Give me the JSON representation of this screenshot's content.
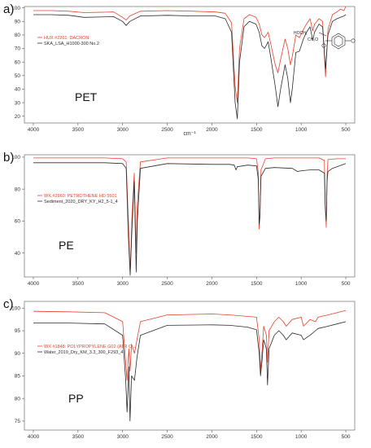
{
  "colors": {
    "reference": "#e8402a",
    "sample": "#2b2b2b",
    "axis": "#555555",
    "struct": "#222222"
  },
  "chart_data": [
    {
      "type": "line",
      "panel_label": "a)",
      "polymer_label": "PET",
      "xlabel": "cm⁻¹",
      "x_reversed": true,
      "xlim": [
        4100,
        400
      ],
      "ylim": [
        15,
        101
      ],
      "x_ticks": [
        4000,
        3500,
        3000,
        2500,
        2000,
        1500,
        1000,
        500
      ],
      "y_ticks": [
        20,
        30,
        40,
        50,
        60,
        70,
        80,
        90,
        100
      ],
      "legend_position": "upper-left",
      "structure_labels": [
        "HOCH₂",
        "CH₂O"
      ],
      "series": [
        {
          "name": "HUX #2261: DACRON",
          "role": "reference",
          "points": [
            [
              4000,
              98
            ],
            [
              3800,
              98
            ],
            [
              3600,
              97.5
            ],
            [
              3430,
              96.5
            ],
            [
              3100,
              97
            ],
            [
              3000,
              93
            ],
            [
              2960,
              91
            ],
            [
              2920,
              94
            ],
            [
              2800,
              97.5
            ],
            [
              2500,
              98
            ],
            [
              2200,
              97.5
            ],
            [
              1960,
              97
            ],
            [
              1850,
              96
            ],
            [
              1780,
              89
            ],
            [
              1740,
              42
            ],
            [
              1715,
              30
            ],
            [
              1690,
              70
            ],
            [
              1640,
              92
            ],
            [
              1580,
              95
            ],
            [
              1505,
              93
            ],
            [
              1470,
              88
            ],
            [
              1440,
              80
            ],
            [
              1410,
              78
            ],
            [
              1370,
              82
            ],
            [
              1340,
              73
            ],
            [
              1290,
              58
            ],
            [
              1260,
              52
            ],
            [
              1230,
              62
            ],
            [
              1180,
              77
            ],
            [
              1150,
              70
            ],
            [
              1120,
              58
            ],
            [
              1100,
              64
            ],
            [
              1060,
              80
            ],
            [
              1020,
              78
            ],
            [
              975,
              84
            ],
            [
              940,
              88
            ],
            [
              900,
              92
            ],
            [
              870,
              83
            ],
            [
              850,
              88
            ],
            [
              800,
              92
            ],
            [
              760,
              90
            ],
            [
              727,
              49
            ],
            [
              700,
              84
            ],
            [
              650,
              95
            ],
            [
              600,
              97
            ],
            [
              560,
              99
            ],
            [
              520,
              98
            ],
            [
              500,
              101
            ]
          ]
        },
        {
          "name": "SKA_LSA_H1000-300 No.2",
          "role": "sample",
          "points": [
            [
              4000,
              95
            ],
            [
              3800,
              95
            ],
            [
              3600,
              94.5
            ],
            [
              3430,
              93
            ],
            [
              3100,
              93.5
            ],
            [
              3000,
              90
            ],
            [
              2960,
              87
            ],
            [
              2920,
              90
            ],
            [
              2800,
              94
            ],
            [
              2500,
              94.5
            ],
            [
              2200,
              94
            ],
            [
              1960,
              94
            ],
            [
              1850,
              92
            ],
            [
              1780,
              82
            ],
            [
              1740,
              30
            ],
            [
              1715,
              18
            ],
            [
              1690,
              60
            ],
            [
              1640,
              86
            ],
            [
              1580,
              90
            ],
            [
              1505,
              88
            ],
            [
              1470,
              82
            ],
            [
              1440,
              72
            ],
            [
              1410,
              70
            ],
            [
              1370,
              75
            ],
            [
              1340,
              63
            ],
            [
              1290,
              42
            ],
            [
              1260,
              27
            ],
            [
              1230,
              40
            ],
            [
              1180,
              58
            ],
            [
              1150,
              48
            ],
            [
              1120,
              30
            ],
            [
              1100,
              40
            ],
            [
              1060,
              67
            ],
            [
              1020,
              68
            ],
            [
              975,
              77
            ],
            [
              940,
              82
            ],
            [
              900,
              86
            ],
            [
              870,
              76
            ],
            [
              850,
              82
            ],
            [
              800,
              88
            ],
            [
              760,
              86
            ],
            [
              727,
              55
            ],
            [
              700,
              80
            ],
            [
              650,
              90
            ],
            [
              600,
              92
            ],
            [
              560,
              93
            ],
            [
              520,
              94
            ],
            [
              500,
              95
            ]
          ]
        }
      ]
    },
    {
      "type": "line",
      "panel_label": "b)",
      "polymer_label": "PE",
      "xlabel": "",
      "x_reversed": true,
      "xlim": [
        4100,
        400
      ],
      "ylim": [
        25,
        101.5
      ],
      "x_ticks": [
        4000,
        3500,
        3000,
        2500,
        2000,
        1500,
        1000,
        500
      ],
      "y_ticks": [
        40,
        60,
        80,
        100
      ],
      "legend_position": "upper-left",
      "series": [
        {
          "name": "WX #2960: PETROTHENE HD 5501",
          "role": "reference",
          "points": [
            [
              4000,
              99.5
            ],
            [
              3500,
              99.5
            ],
            [
              3200,
              99.5
            ],
            [
              3000,
              99
            ],
            [
              2960,
              97
            ],
            [
              2935,
              60
            ],
            [
              2915,
              28
            ],
            [
              2895,
              62
            ],
            [
              2870,
              90
            ],
            [
              2848,
              40
            ],
            [
              2835,
              70
            ],
            [
              2800,
              97
            ],
            [
              2500,
              99.5
            ],
            [
              2000,
              99.5
            ],
            [
              1800,
              99.5
            ],
            [
              1600,
              99.5
            ],
            [
              1500,
              99
            ],
            [
              1480,
              90
            ],
            [
              1471,
              55
            ],
            [
              1462,
              62
            ],
            [
              1450,
              92
            ],
            [
              1400,
              99
            ],
            [
              1300,
              99.5
            ],
            [
              1000,
              99.5
            ],
            [
              800,
              99.5
            ],
            [
              740,
              98
            ],
            [
              730,
              70
            ],
            [
              719,
              56
            ],
            [
              710,
              88
            ],
            [
              700,
              98.5
            ],
            [
              600,
              99
            ],
            [
              500,
              99
            ]
          ]
        },
        {
          "name": "Sediment_2020_DRY_KY_H2_5-1_4",
          "role": "sample",
          "points": [
            [
              4000,
              96.5
            ],
            [
              3500,
              96.5
            ],
            [
              3200,
              96.5
            ],
            [
              3000,
              96
            ],
            [
              2960,
              93
            ],
            [
              2935,
              50
            ],
            [
              2915,
              26
            ],
            [
              2895,
              55
            ],
            [
              2870,
              85
            ],
            [
              2848,
              28
            ],
            [
              2835,
              60
            ],
            [
              2800,
              93
            ],
            [
              2500,
              96
            ],
            [
              2000,
              95.5
            ],
            [
              1800,
              95.5
            ],
            [
              1750,
              95
            ],
            [
              1730,
              92
            ],
            [
              1715,
              94
            ],
            [
              1600,
              95
            ],
            [
              1500,
              94.5
            ],
            [
              1480,
              86
            ],
            [
              1471,
              58
            ],
            [
              1462,
              64
            ],
            [
              1450,
              88
            ],
            [
              1400,
              93
            ],
            [
              1300,
              93.5
            ],
            [
              1100,
              93
            ],
            [
              1040,
              91
            ],
            [
              1000,
              91.5
            ],
            [
              900,
              92
            ],
            [
              800,
              92
            ],
            [
              740,
              90
            ],
            [
              730,
              68
            ],
            [
              719,
              60
            ],
            [
              710,
              85
            ],
            [
              700,
              91
            ],
            [
              650,
              93
            ],
            [
              600,
              94
            ],
            [
              550,
              95
            ],
            [
              500,
              96
            ]
          ]
        }
      ]
    },
    {
      "type": "line",
      "panel_label": "c)",
      "polymer_label": "PP",
      "xlabel": "",
      "x_reversed": true,
      "xlim": [
        4100,
        400
      ],
      "ylim": [
        73,
        101.5
      ],
      "x_ticks": [
        4000,
        3500,
        3000,
        2500,
        2000,
        1500,
        1000,
        500
      ],
      "y_ticks": [
        75,
        80,
        85,
        90,
        95,
        100
      ],
      "legend_position": "upper-left",
      "series": [
        {
          "name": "WX #1848: POLYPROPYLENE G02 (ATR C...",
          "role": "reference",
          "points": [
            [
              4000,
              99.3
            ],
            [
              3600,
              99.2
            ],
            [
              3200,
              99
            ],
            [
              3000,
              97
            ],
            [
              2965,
              88
            ],
            [
              2950,
              84
            ],
            [
              2930,
              91
            ],
            [
              2917,
              86
            ],
            [
              2900,
              92
            ],
            [
              2867,
              90
            ],
            [
              2840,
              93
            ],
            [
              2800,
              97
            ],
            [
              2500,
              98.5
            ],
            [
              2000,
              98.7
            ],
            [
              1800,
              98.5
            ],
            [
              1500,
              98
            ],
            [
              1470,
              93
            ],
            [
              1455,
              86
            ],
            [
              1440,
              90
            ],
            [
              1420,
              96
            ],
            [
              1390,
              94
            ],
            [
              1377,
              88
            ],
            [
              1360,
              95
            ],
            [
              1300,
              97
            ],
            [
              1250,
              98
            ],
            [
              1200,
              97
            ],
            [
              1167,
              96
            ],
            [
              1100,
              97.5
            ],
            [
              1000,
              98
            ],
            [
              973,
              96
            ],
            [
              900,
              97.5
            ],
            [
              840,
              97
            ],
            [
              810,
              98
            ],
            [
              700,
              98.5
            ],
            [
              600,
              99
            ],
            [
              500,
              99.5
            ]
          ]
        },
        {
          "name": "Water_2019_Dry_KM_3.3_300_F293_4",
          "role": "sample",
          "points": [
            [
              4000,
              96.7
            ],
            [
              3600,
              96.7
            ],
            [
              3200,
              96.5
            ],
            [
              3000,
              94
            ],
            [
              2965,
              84
            ],
            [
              2950,
              77
            ],
            [
              2930,
              87
            ],
            [
              2917,
              75
            ],
            [
              2900,
              85
            ],
            [
              2867,
              84
            ],
            [
              2840,
              89
            ],
            [
              2800,
              94
            ],
            [
              2500,
              96.2
            ],
            [
              2000,
              96.3
            ],
            [
              1800,
              96.2
            ],
            [
              1600,
              95.8
            ],
            [
              1500,
              95.2
            ],
            [
              1470,
              90
            ],
            [
              1455,
              85
            ],
            [
              1440,
              88
            ],
            [
              1420,
              93
            ],
            [
              1390,
              91
            ],
            [
              1377,
              83
            ],
            [
              1360,
              91
            ],
            [
              1300,
              94
            ],
            [
              1250,
              95
            ],
            [
              1200,
              94
            ],
            [
              1167,
              93
            ],
            [
              1100,
              94.5
            ],
            [
              1000,
              94
            ],
            [
              973,
              93
            ],
            [
              900,
              94
            ],
            [
              840,
              95
            ],
            [
              810,
              95.5
            ],
            [
              700,
              96
            ],
            [
              600,
              96.5
            ],
            [
              500,
              97
            ]
          ]
        }
      ]
    }
  ]
}
